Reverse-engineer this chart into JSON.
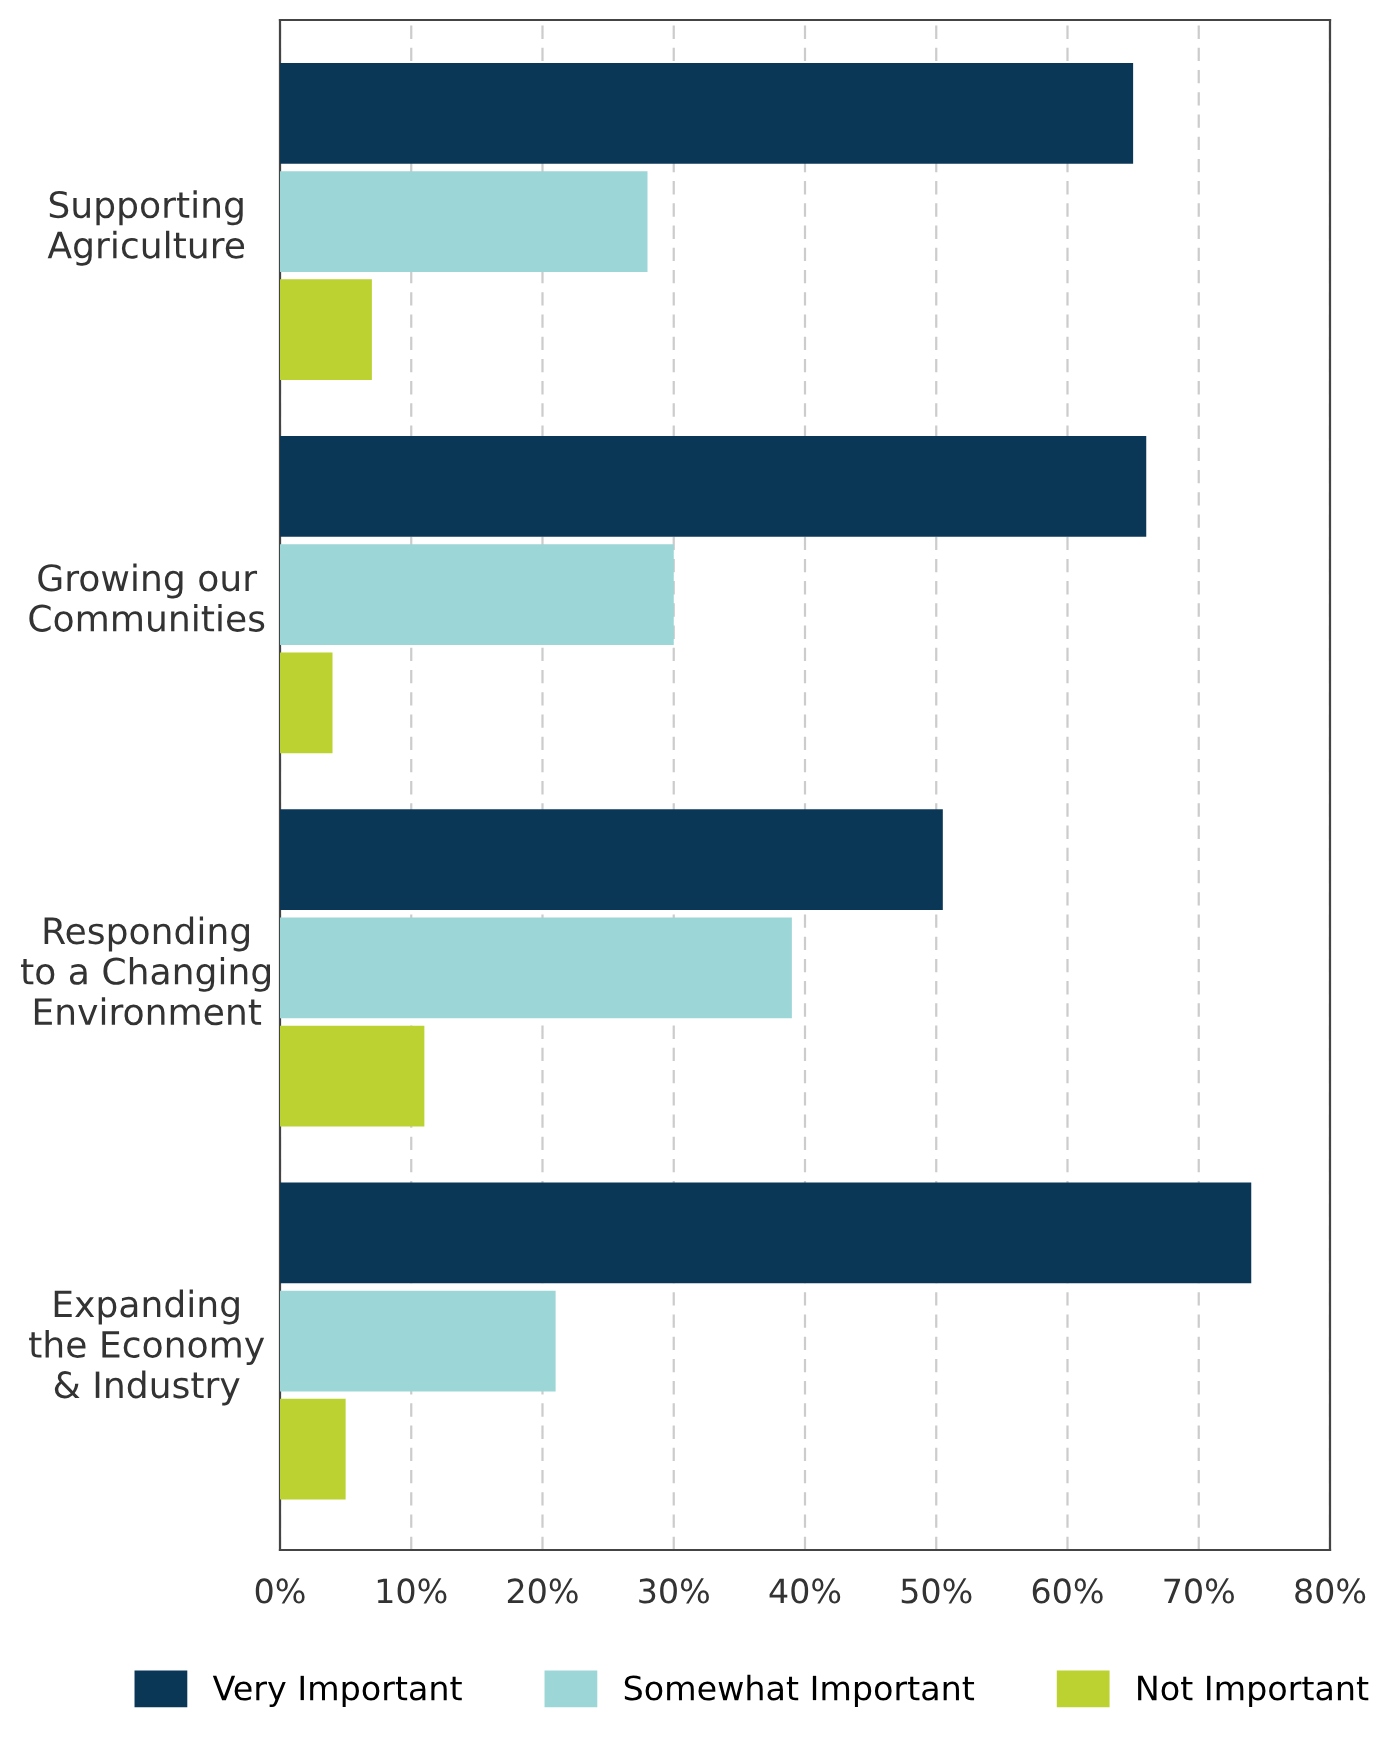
{
  "chart_data": {
    "type": "bar",
    "orientation": "horizontal",
    "categories": [
      "Supporting\nAgriculture",
      "Growing our\nCommunities",
      "Responding\nto a Changing\nEnvironment",
      "Expanding\nthe Economy\n& Industry"
    ],
    "series": [
      {
        "name": "Very Important",
        "color": "#0b3757",
        "values": [
          65,
          66,
          50.5,
          74
        ]
      },
      {
        "name": "Somewhat Important",
        "color": "#9dd6d7",
        "values": [
          28,
          30,
          39,
          21
        ]
      },
      {
        "name": "Not Important",
        "color": "#bcd231",
        "values": [
          7,
          4,
          11,
          5
        ]
      }
    ],
    "xlim": [
      0,
      80
    ],
    "xticks": [
      {
        "value": 0,
        "label": "0%"
      },
      {
        "value": 10,
        "label": "10%"
      },
      {
        "value": 20,
        "label": "20%"
      },
      {
        "value": 30,
        "label": "30%"
      },
      {
        "value": 40,
        "label": "40%"
      },
      {
        "value": 50,
        "label": "50%"
      },
      {
        "value": 60,
        "label": "60%"
      },
      {
        "value": 70,
        "label": "70%"
      },
      {
        "value": 80,
        "label": "80%"
      }
    ],
    "grid": "x",
    "legend": "bottom"
  }
}
